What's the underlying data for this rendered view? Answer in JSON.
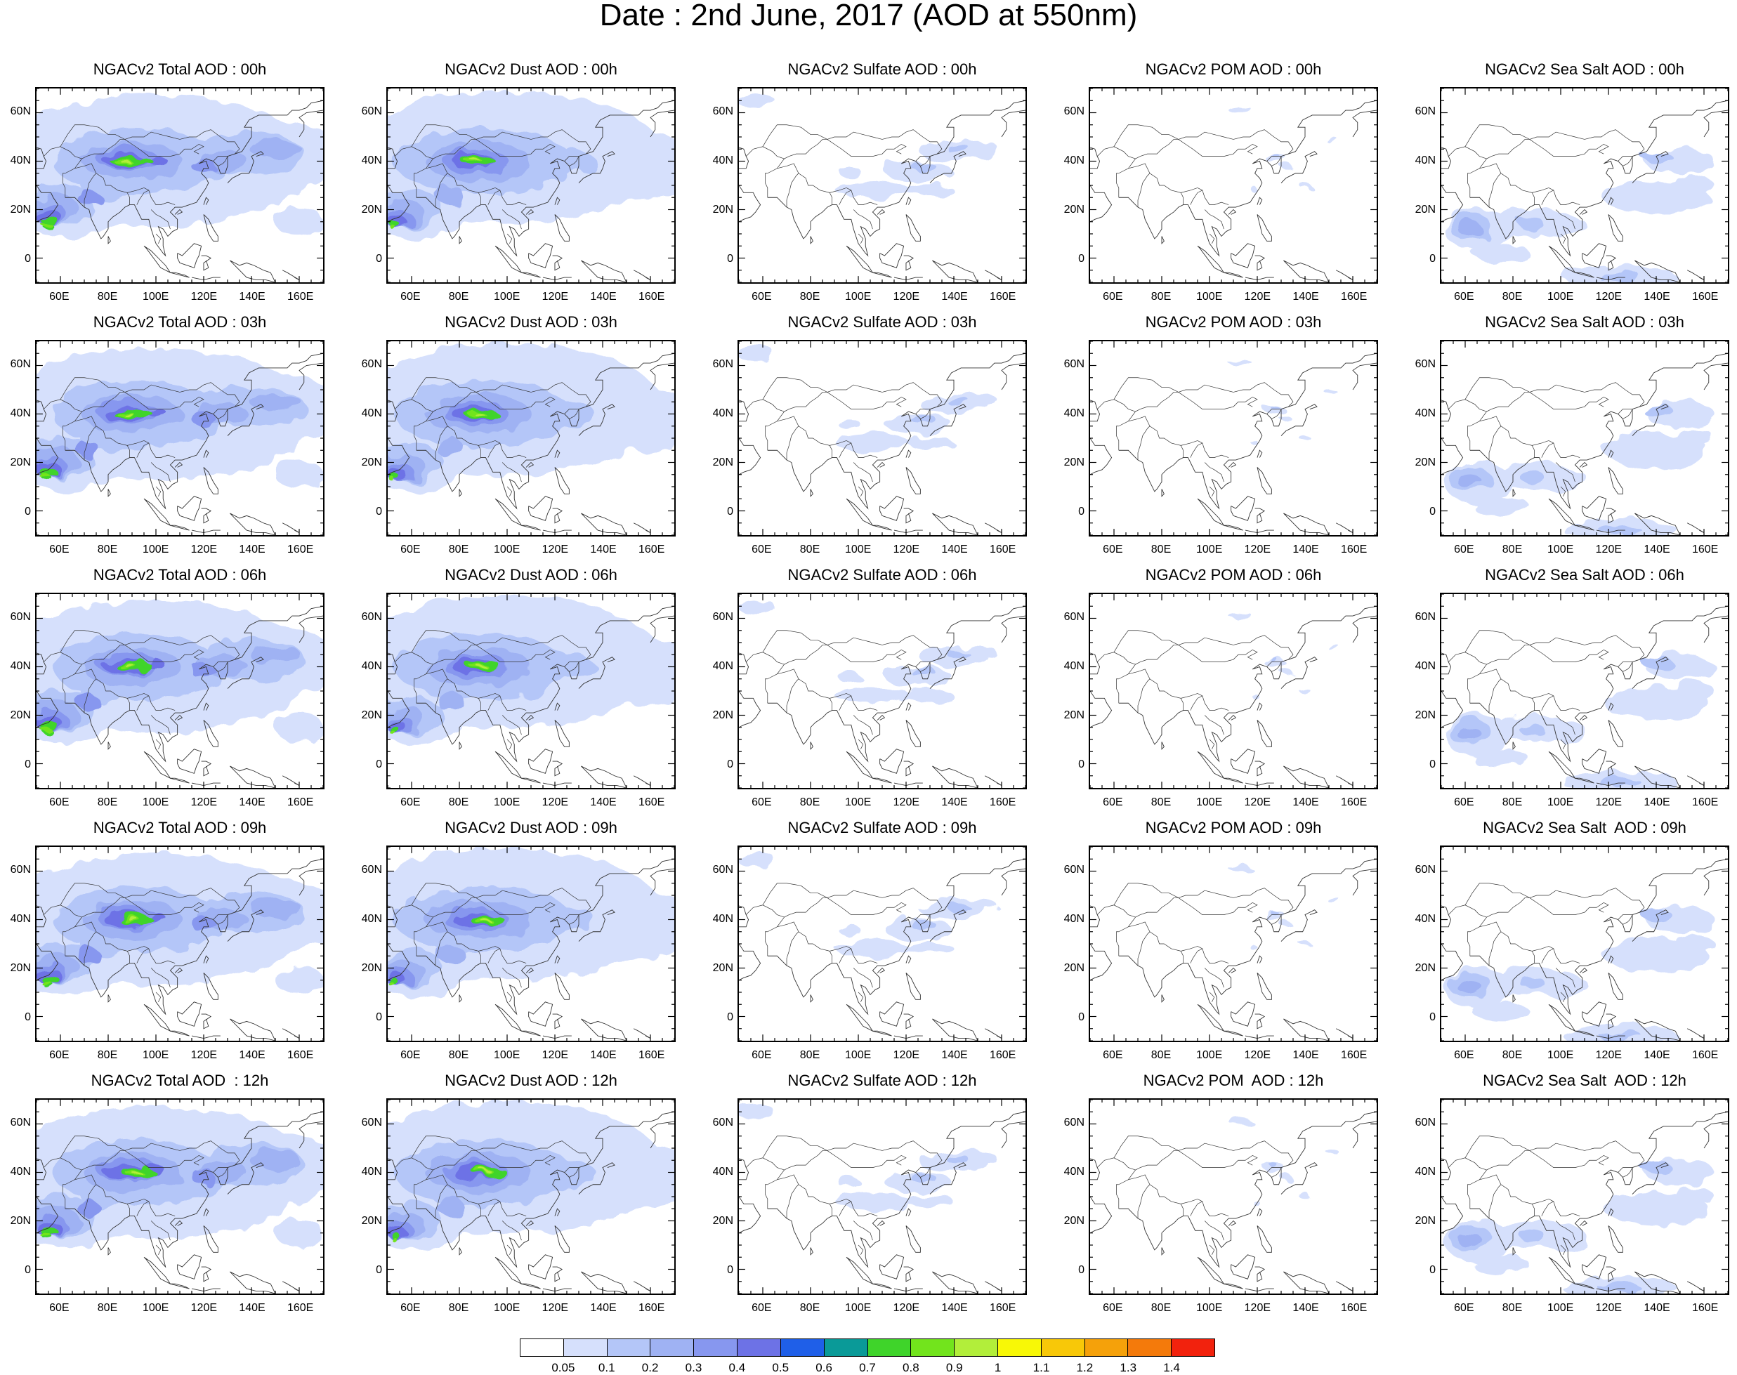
{
  "main_title": "Date : 2nd June, 2017 (AOD at 550nm)",
  "panel_titles": [
    [
      "NGACv2 Total AOD : 00h",
      "NGACv2 Dust AOD : 00h",
      "NGACv2 Sulfate AOD : 00h",
      "NGACv2 POM AOD : 00h",
      "NGACv2 Sea Salt AOD : 00h"
    ],
    [
      "NGACv2 Total AOD : 03h",
      "NGACv2 Dust AOD : 03h",
      "NGACv2 Sulfate AOD : 03h",
      "NGACv2 POM AOD : 03h",
      "NGACv2 Sea Salt AOD : 03h"
    ],
    [
      "NGACv2 Total AOD : 06h",
      "NGACv2 Dust AOD : 06h",
      "NGACv2 Sulfate AOD : 06h",
      "NGACv2 POM AOD : 06h",
      "NGACv2 Sea Salt AOD : 06h"
    ],
    [
      "NGACv2 Total AOD : 09h",
      "NGACv2 Dust AOD : 09h",
      "NGACv2 Sulfate AOD : 09h",
      "NGACv2 POM AOD : 09h",
      "NGACv2 Sea Salt  AOD : 09h"
    ],
    [
      "NGACv2 Total AOD  : 12h",
      "NGACv2 Dust AOD : 12h",
      "NGACv2 Sulfate AOD : 12h",
      "NGACv2 POM  AOD : 12h",
      "NGACv2 Sea Salt  AOD : 12h"
    ]
  ],
  "lat_labels": [
    "60N",
    "40N",
    "20N",
    "0"
  ],
  "lon_labels": [
    "60E",
    "80E",
    "100E",
    "120E",
    "140E",
    "160E"
  ],
  "colorbar": {
    "colors": [
      "#ffffff",
      "#d6e0fc",
      "#b4c6f8",
      "#9fb2f3",
      "#8797ef",
      "#6d72e6",
      "#1f5fe8",
      "#0a9a98",
      "#3fd42a",
      "#72e41c",
      "#b2ee3a",
      "#f8f806",
      "#f8c808",
      "#f5a10a",
      "#f47a0b",
      "#f2220d"
    ],
    "labels": [
      "0.05",
      "0.1",
      "0.2",
      "0.3",
      "0.4",
      "0.5",
      "0.6",
      "0.7",
      "0.8",
      "0.9",
      "1",
      "1.1",
      "1.2",
      "1.3",
      "1.4"
    ]
  }
}
